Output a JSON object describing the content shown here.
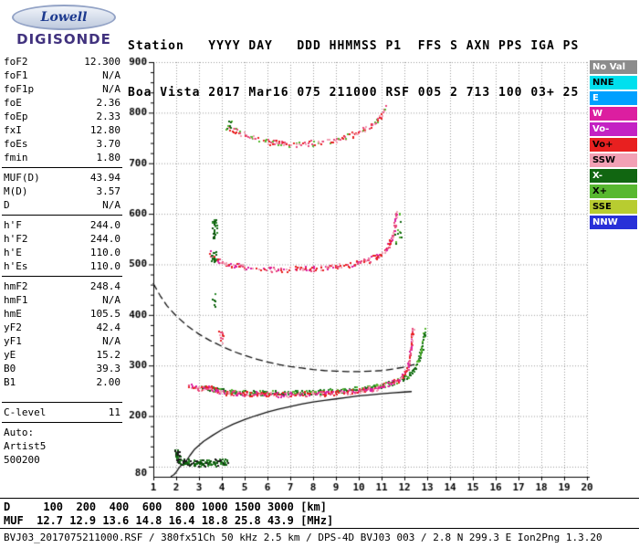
{
  "logo": {
    "line1": "Lowell",
    "line2": "DIGISONDE"
  },
  "header": {
    "line1": "Station   YYYY DAY   DDD HHMMSS P1  FFS S AXN PPS IGA PS",
    "line2": "Boa Vista 2017 Mar16 075 211000 RSF 005 2 713 100 03+ 25"
  },
  "params": {
    "groups": [
      {
        "rows": [
          {
            "label": "foF2",
            "value": "12.300"
          },
          {
            "label": "foF1",
            "value": "N/A"
          },
          {
            "label": "foF1p",
            "value": "N/A"
          },
          {
            "label": "foE",
            "value": "2.36"
          },
          {
            "label": "foEp",
            "value": "2.33"
          },
          {
            "label": "fxI",
            "value": "12.80"
          },
          {
            "label": "foEs",
            "value": "3.70"
          },
          {
            "label": "fmin",
            "value": "1.80"
          }
        ]
      },
      {
        "rows": [
          {
            "label": "MUF(D)",
            "value": "43.94"
          },
          {
            "label": "M(D)",
            "value": "3.57"
          },
          {
            "label": "D",
            "value": "N/A"
          }
        ]
      },
      {
        "rows": [
          {
            "label": "h'F",
            "value": "244.0"
          },
          {
            "label": "h'F2",
            "value": "244.0"
          },
          {
            "label": "h'E",
            "value": "110.0"
          },
          {
            "label": "h'Es",
            "value": "110.0"
          }
        ]
      },
      {
        "rows": [
          {
            "label": "hmF2",
            "value": "248.4"
          },
          {
            "label": "hmF1",
            "value": "N/A"
          },
          {
            "label": "hmE",
            "value": "105.5"
          },
          {
            "label": "yF2",
            "value": "42.4"
          },
          {
            "label": "yF1",
            "value": "N/A"
          },
          {
            "label": "yE",
            "value": "15.2"
          },
          {
            "label": "B0",
            "value": "39.3"
          },
          {
            "label": "B1",
            "value": "2.00"
          }
        ]
      },
      {
        "rows": [
          {
            "label": "C-level",
            "value": "11"
          }
        ]
      },
      {
        "rows": [
          {
            "label": "Auto:",
            "value": ""
          },
          {
            "label": "Artist5",
            "value": ""
          },
          {
            "label": "500200",
            "value": ""
          }
        ]
      }
    ]
  },
  "legend": {
    "items": [
      {
        "label": "No Val",
        "bg": "#8C8C8C",
        "fg": "#FFFFFF"
      },
      {
        "label": "NNE",
        "bg": "#00E0EE",
        "fg": "#000000"
      },
      {
        "label": "E",
        "bg": "#00A0FF",
        "fg": "#FFFFFF"
      },
      {
        "label": "W",
        "bg": "#DC1EA0",
        "fg": "#FFFFFF"
      },
      {
        "label": "Vo-",
        "bg": "#C322C3",
        "fg": "#FFFFFF"
      },
      {
        "label": "Vo+",
        "bg": "#E82020",
        "fg": "#000000"
      },
      {
        "label": "SSW",
        "bg": "#F2A0B4",
        "fg": "#000000"
      },
      {
        "label": "X-",
        "bg": "#116611",
        "fg": "#FFFFFF"
      },
      {
        "label": "X+",
        "bg": "#58B830",
        "fg": "#000000"
      },
      {
        "label": "SSE",
        "bg": "#B8CC30",
        "fg": "#000000"
      },
      {
        "label": "NNW",
        "bg": "#2830D8",
        "fg": "#FFFFFF"
      }
    ]
  },
  "bottom": {
    "d_line": "D     100  200  400  600  800 1000 1500 3000 [km]",
    "muf_line": "MUF  12.7 12.9 13.6 14.8 16.4 18.8 25.8 43.9 [MHz]",
    "status": "BVJ03_2017075211000.RSF / 380fx51Ch 50 kHz 2.5 km / DPS-4D BVJ03 003 / 2.8 N 299.3 E Ion2Png 1.3.20"
  },
  "chart_data": {
    "type": "scatter",
    "x_axis": {
      "min": 1,
      "max": 20,
      "unit": "MHz",
      "ticks": [
        1,
        2,
        3,
        4,
        5,
        6,
        7,
        8,
        9,
        10,
        11,
        12,
        13,
        14,
        15,
        16,
        17,
        18,
        19,
        20
      ]
    },
    "y_axis": {
      "min": 80,
      "max": 900,
      "unit": "km",
      "grid_step": 100,
      "tick_labels": [
        900,
        800,
        700,
        600,
        500,
        400,
        300,
        200
      ],
      "bottom_label": "80"
    },
    "grid": true,
    "legend_position": "right",
    "muf_table": {
      "d_km": [
        100,
        200,
        400,
        600,
        800,
        1000,
        1500,
        3000
      ],
      "muf_mhz": [
        12.7,
        12.9,
        13.6,
        14.8,
        16.4,
        18.8,
        25.8,
        43.9
      ]
    },
    "traces": [
      {
        "name": "F-3rd-hop",
        "palette": [
          "#E8487C",
          "#E82020",
          "#F2A0B4",
          "#58B830"
        ],
        "size": 2,
        "rows": 2,
        "density": 0.55,
        "jitter": 2.0,
        "points": [
          [
            4.3,
            772
          ],
          [
            4.6,
            763
          ],
          [
            5,
            756
          ],
          [
            5.4,
            750
          ],
          [
            5.8,
            745
          ],
          [
            6.2,
            742
          ],
          [
            6.6,
            740
          ],
          [
            7,
            739
          ],
          [
            7.4,
            739
          ],
          [
            7.8,
            740
          ],
          [
            8.2,
            742
          ],
          [
            8.6,
            745
          ],
          [
            9,
            748
          ],
          [
            9.4,
            753
          ],
          [
            9.8,
            759
          ],
          [
            10.2,
            767
          ],
          [
            10.5,
            775
          ],
          [
            10.8,
            786
          ],
          [
            11,
            797
          ],
          [
            11.1,
            806
          ],
          [
            11.15,
            813
          ]
        ]
      },
      {
        "name": "F-2nd-hop",
        "palette": [
          "#E8487C",
          "#E82020",
          "#DC1EA0",
          "#F2A0B4"
        ],
        "size": 2,
        "rows": 2,
        "density": 0.65,
        "jitter": 2.0,
        "points": [
          [
            3.45,
            522
          ],
          [
            3.6,
            514
          ],
          [
            3.8,
            508
          ],
          [
            4,
            505
          ],
          [
            4.3,
            501
          ],
          [
            4.7,
            498
          ],
          [
            5.1,
            495
          ],
          [
            5.6,
            492.5
          ],
          [
            6.1,
            491
          ],
          [
            6.6,
            490.5
          ],
          [
            7.1,
            491
          ],
          [
            7.6,
            492
          ],
          [
            8.1,
            493.5
          ],
          [
            8.6,
            495.5
          ],
          [
            9.1,
            498
          ],
          [
            9.6,
            501
          ],
          [
            10,
            505
          ],
          [
            10.4,
            510
          ],
          [
            10.8,
            517
          ],
          [
            11.1,
            527
          ],
          [
            11.3,
            540
          ],
          [
            11.45,
            556
          ],
          [
            11.55,
            575
          ],
          [
            11.62,
            595
          ],
          [
            11.66,
            608
          ]
        ]
      },
      {
        "name": "F-1st-hop-X",
        "palette": [
          "#116611",
          "#58B830",
          "#2E8B2E"
        ],
        "size": 2,
        "rows": 2,
        "density": 0.8,
        "jitter": 1.6,
        "points": [
          [
            3.1,
            259
          ],
          [
            3.4,
            257
          ],
          [
            3.7,
            254
          ],
          [
            4,
            251
          ],
          [
            4.4,
            249
          ],
          [
            4.8,
            248
          ],
          [
            5.3,
            247
          ],
          [
            5.8,
            246.5
          ],
          [
            6.3,
            246.5
          ],
          [
            6.8,
            247
          ],
          [
            7.3,
            247.5
          ],
          [
            7.8,
            248
          ],
          [
            8.3,
            249
          ],
          [
            8.8,
            250
          ],
          [
            9.3,
            251.5
          ],
          [
            9.8,
            253.5
          ],
          [
            10.3,
            256
          ],
          [
            10.7,
            259
          ],
          [
            11.1,
            263
          ],
          [
            11.5,
            268
          ],
          [
            11.9,
            275
          ],
          [
            12.2,
            284
          ],
          [
            12.45,
            296
          ],
          [
            12.6,
            311
          ],
          [
            12.7,
            328
          ],
          [
            12.8,
            349
          ],
          [
            12.88,
            369
          ]
        ]
      },
      {
        "name": "F-1st-hop-O",
        "palette": [
          "#E8487C",
          "#E82020",
          "#DC1EA0",
          "#F2A0B4"
        ],
        "size": 2,
        "rows": 2,
        "density": 0.8,
        "jitter": 1.6,
        "points": [
          [
            2.55,
            262
          ],
          [
            2.7,
            258
          ],
          [
            2.9,
            256
          ],
          [
            3.1,
            257
          ],
          [
            3.3,
            258
          ],
          [
            3.5,
            256
          ],
          [
            3.7,
            252
          ],
          [
            3.9,
            249
          ],
          [
            4.2,
            247
          ],
          [
            4.6,
            246
          ],
          [
            5,
            245
          ],
          [
            5.5,
            244.5
          ],
          [
            6,
            244
          ],
          [
            6.5,
            244
          ],
          [
            7,
            244.5
          ],
          [
            7.5,
            245
          ],
          [
            8,
            245.5
          ],
          [
            8.5,
            246
          ],
          [
            9,
            247
          ],
          [
            9.5,
            249
          ],
          [
            10,
            251
          ],
          [
            10.4,
            254
          ],
          [
            10.8,
            257
          ],
          [
            11.1,
            261
          ],
          [
            11.4,
            266
          ],
          [
            11.7,
            272
          ],
          [
            11.9,
            280
          ],
          [
            12.05,
            290
          ],
          [
            12.15,
            302
          ],
          [
            12.22,
            318
          ],
          [
            12.28,
            340
          ],
          [
            12.32,
            362
          ],
          [
            12.35,
            372
          ]
        ]
      },
      {
        "name": "E-trace",
        "palette": [
          "#116611",
          "#0A4F0A",
          "#1A1A1A",
          "#2E8B2E"
        ],
        "size": 2,
        "rows": 3,
        "density": 0.9,
        "jitter": 1.8,
        "points": [
          [
            1.95,
            130
          ],
          [
            2,
            122
          ],
          [
            2.05,
            116
          ],
          [
            2.15,
            112
          ],
          [
            2.3,
            110
          ],
          [
            2.5,
            109
          ],
          [
            2.8,
            108
          ],
          [
            3.1,
            108
          ],
          [
            3.4,
            108.5
          ],
          [
            3.7,
            109
          ],
          [
            4,
            109
          ],
          [
            4.2,
            110
          ]
        ]
      }
    ],
    "clusters": [
      {
        "f0": 3.55,
        "f1": 3.78,
        "h0": 552,
        "h1": 590,
        "n": 26,
        "size": 2,
        "palette": [
          "#116611",
          "#0A4F0A",
          "#2E8B2E"
        ]
      },
      {
        "f0": 3.5,
        "f1": 3.72,
        "h0": 505,
        "h1": 526,
        "n": 16,
        "size": 2,
        "palette": [
          "#116611",
          "#2E8B2E"
        ]
      },
      {
        "f0": 3.85,
        "f1": 4.05,
        "h0": 345,
        "h1": 372,
        "n": 12,
        "size": 2,
        "palette": [
          "#E8487C",
          "#E82020",
          "#F2A0B4"
        ]
      },
      {
        "f0": 1.95,
        "f1": 2.18,
        "h0": 118,
        "h1": 136,
        "n": 10,
        "size": 2,
        "palette": [
          "#1A1A1A",
          "#116611"
        ]
      },
      {
        "f0": 11.55,
        "f1": 11.95,
        "h0": 540,
        "h1": 602,
        "n": 12,
        "size": 2,
        "palette": [
          "#116611",
          "#58B830"
        ]
      },
      {
        "f0": 4.15,
        "f1": 4.4,
        "h0": 766,
        "h1": 786,
        "n": 8,
        "size": 2,
        "palette": [
          "#116611",
          "#58B830"
        ]
      },
      {
        "f0": 3.55,
        "f1": 3.7,
        "h0": 415,
        "h1": 455,
        "n": 6,
        "size": 2,
        "palette": [
          "#116611",
          "#2E8B2E"
        ]
      }
    ],
    "curves": [
      {
        "name": "true-height-profile",
        "style": "solid",
        "color": "#111111",
        "points": [
          [
            1.78,
            81
          ],
          [
            1.9,
            84
          ],
          [
            2,
            89
          ],
          [
            2.1,
            96
          ],
          [
            2.2,
            102
          ],
          [
            2.32,
            105.5
          ],
          [
            2.45,
            112
          ],
          [
            2.6,
            122
          ],
          [
            2.8,
            134
          ],
          [
            3.2,
            150
          ],
          [
            3.6,
            162
          ],
          [
            4,
            173
          ],
          [
            4.5,
            184
          ],
          [
            5,
            193
          ],
          [
            5.5,
            201
          ],
          [
            6,
            208
          ],
          [
            6.5,
            214
          ],
          [
            7,
            219
          ],
          [
            7.5,
            224
          ],
          [
            8,
            228
          ],
          [
            8.5,
            231
          ],
          [
            9,
            234
          ],
          [
            9.5,
            237
          ],
          [
            10,
            240
          ],
          [
            10.5,
            242
          ],
          [
            11,
            244
          ],
          [
            11.5,
            246
          ],
          [
            12,
            247.5
          ],
          [
            12.3,
            248.4
          ]
        ]
      },
      {
        "name": "muf-transmission-curve",
        "style": "dashed",
        "color": "#111111",
        "points": [
          [
            1,
            462
          ],
          [
            1.3,
            438
          ],
          [
            1.6,
            418
          ],
          [
            2,
            398
          ],
          [
            2.5,
            378
          ],
          [
            3,
            362
          ],
          [
            3.5,
            349
          ],
          [
            4,
            338
          ],
          [
            4.5,
            328
          ],
          [
            5,
            320
          ],
          [
            5.5,
            313
          ],
          [
            6,
            307
          ],
          [
            6.5,
            302
          ],
          [
            7,
            298
          ],
          [
            7.5,
            295
          ],
          [
            8,
            292
          ],
          [
            8.5,
            290
          ],
          [
            9,
            289
          ],
          [
            9.5,
            288
          ],
          [
            10,
            288
          ],
          [
            10.5,
            289
          ],
          [
            11,
            290
          ],
          [
            11.5,
            293
          ],
          [
            12,
            297
          ],
          [
            12.6,
            304
          ]
        ]
      }
    ]
  }
}
